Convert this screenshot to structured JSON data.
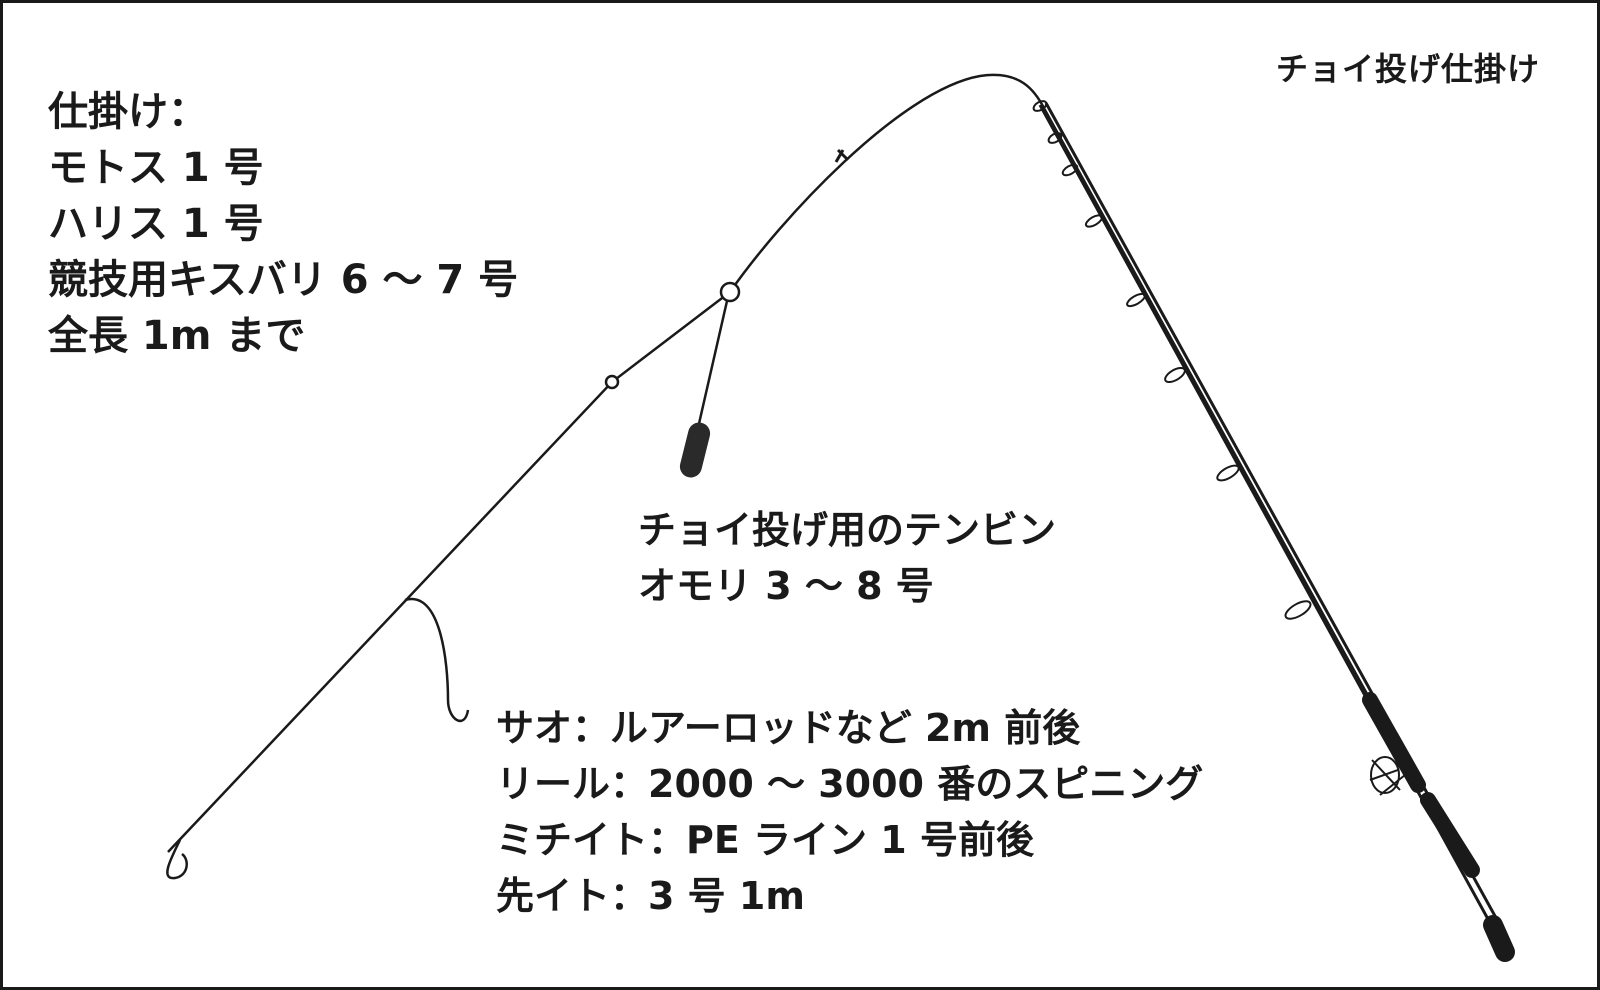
{
  "title": "チョイ投げ仕掛け",
  "rig_spec": {
    "lines": [
      "仕掛け：",
      "モトス 1 号",
      "ハリス 1 号",
      "競技用キスバリ 6 ～ 7 号",
      "全長 1m まで"
    ]
  },
  "sinker_label": {
    "lines": [
      "チョイ投げ用のテンビン",
      "オモリ 3 ～ 8 号"
    ]
  },
  "tackle_spec": {
    "lines": [
      "サオ：ルアーロッドなど 2m 前後",
      "リール：2000 ～ 3000 番のスピニング",
      "ミチイト：PE ライン 1 号前後",
      "先イト：3 号 1m"
    ]
  },
  "colors": {
    "ink": "#1a1a1a",
    "background": "#ffffff"
  }
}
